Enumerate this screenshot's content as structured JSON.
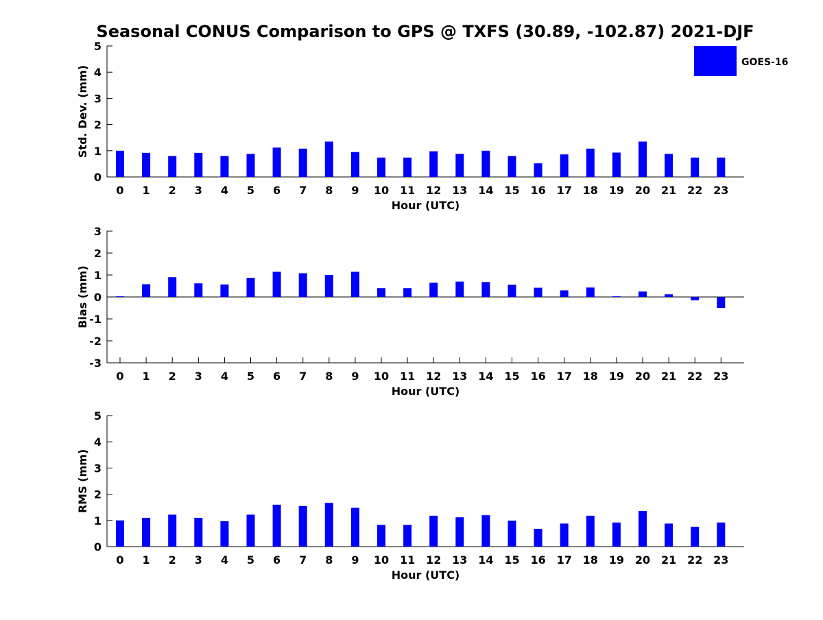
{
  "title": "Seasonal CONUS Comparison to GPS @ TXFS (30.89, -102.87) 2021-DJF",
  "legend": {
    "label": "GOES-16",
    "color": "#0000ff",
    "placement": "top-right"
  },
  "chart_data": [
    {
      "type": "bar",
      "xlabel": "Hour (UTC)",
      "ylabel": "Std. Dev. (mm)",
      "ylim": [
        0,
        5
      ],
      "yticks": [
        0,
        1,
        2,
        3,
        4,
        5
      ],
      "categories": [
        "0",
        "1",
        "2",
        "3",
        "4",
        "5",
        "6",
        "7",
        "8",
        "9",
        "10",
        "11",
        "12",
        "13",
        "14",
        "15",
        "16",
        "17",
        "18",
        "19",
        "20",
        "21",
        "22",
        "23"
      ],
      "series": [
        {
          "name": "GOES-16",
          "color": "#0000ff",
          "values": [
            1.0,
            0.92,
            0.8,
            0.92,
            0.8,
            0.88,
            1.12,
            1.08,
            1.35,
            0.95,
            0.74,
            0.74,
            0.98,
            0.88,
            1.0,
            0.8,
            0.52,
            0.86,
            1.08,
            0.93,
            1.35,
            0.88,
            0.74,
            0.74
          ]
        }
      ]
    },
    {
      "type": "bar",
      "xlabel": "Hour (UTC)",
      "ylabel": "Bias (mm)",
      "ylim": [
        -3,
        3
      ],
      "yticks": [
        -3,
        -2,
        -1,
        0,
        1,
        2,
        3
      ],
      "categories": [
        "0",
        "1",
        "2",
        "3",
        "4",
        "5",
        "6",
        "7",
        "8",
        "9",
        "10",
        "11",
        "12",
        "13",
        "14",
        "15",
        "16",
        "17",
        "18",
        "19",
        "20",
        "21",
        "22",
        "23"
      ],
      "series": [
        {
          "name": "GOES-16",
          "color": "#0000ff",
          "values": [
            0.03,
            0.58,
            0.9,
            0.62,
            0.57,
            0.87,
            1.15,
            1.08,
            1.0,
            1.15,
            0.4,
            0.4,
            0.65,
            0.7,
            0.68,
            0.56,
            0.42,
            0.3,
            0.43,
            0.03,
            0.25,
            0.12,
            -0.15,
            -0.5
          ]
        }
      ]
    },
    {
      "type": "bar",
      "xlabel": "Hour (UTC)",
      "ylabel": "RMS (mm)",
      "ylim": [
        0,
        5
      ],
      "yticks": [
        0,
        1,
        2,
        3,
        4,
        5
      ],
      "categories": [
        "0",
        "1",
        "2",
        "3",
        "4",
        "5",
        "6",
        "7",
        "8",
        "9",
        "10",
        "11",
        "12",
        "13",
        "14",
        "15",
        "16",
        "17",
        "18",
        "19",
        "20",
        "21",
        "22",
        "23"
      ],
      "series": [
        {
          "name": "GOES-16",
          "color": "#0000ff",
          "values": [
            1.0,
            1.1,
            1.22,
            1.1,
            0.97,
            1.22,
            1.6,
            1.55,
            1.67,
            1.48,
            0.83,
            0.83,
            1.18,
            1.12,
            1.2,
            0.99,
            0.68,
            0.88,
            1.18,
            0.92,
            1.36,
            0.88,
            0.76,
            0.92
          ]
        }
      ]
    }
  ]
}
